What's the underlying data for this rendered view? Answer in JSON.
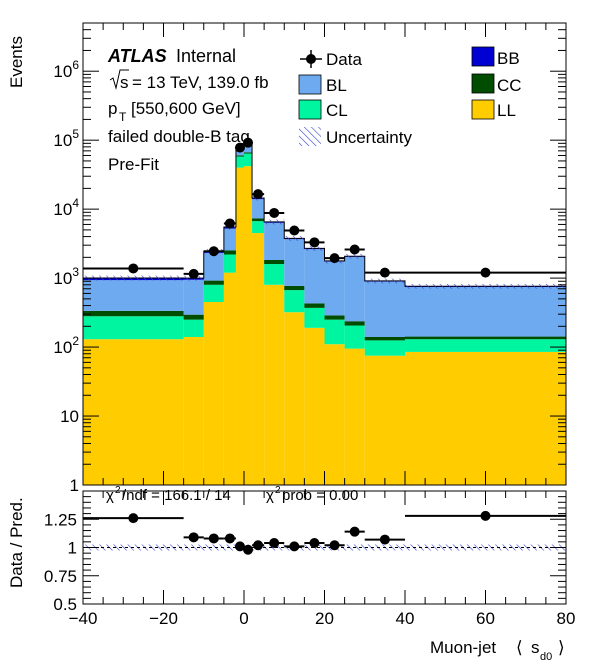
{
  "chart_data": [
    {
      "type": "bar",
      "stacked": true,
      "yscale": "log",
      "ylabel": "Events",
      "ylim": [
        1,
        5000000
      ],
      "xlim": [
        -40,
        80
      ],
      "yticks": [
        {
          "v": 1,
          "label": "1"
        },
        {
          "v": 10,
          "label": "10"
        },
        {
          "v": 100,
          "label": "10^2"
        },
        {
          "v": 1000,
          "label": "10^3"
        },
        {
          "v": 10000,
          "label": "10^4"
        },
        {
          "v": 100000,
          "label": "10^5"
        },
        {
          "v": 1000000,
          "label": "10^6"
        }
      ],
      "bin_edges": [
        -40,
        -15,
        -10,
        -5,
        -2,
        0,
        2,
        5,
        10,
        15,
        20,
        25,
        30,
        40,
        80
      ],
      "series": [
        {
          "name": "LL",
          "color": "#ffcc00",
          "values": [
            130,
            140,
            450,
            1200,
            40000,
            42000,
            4500,
            800,
            320,
            190,
            110,
            95,
            75,
            85
          ]
        },
        {
          "name": "CL",
          "color": "#00f5a0",
          "values": [
            150,
            110,
            350,
            1000,
            18000,
            22000,
            2200,
            800,
            350,
            180,
            140,
            110,
            50,
            45
          ]
        },
        {
          "name": "CC",
          "color": "#004d00",
          "values": [
            55,
            45,
            120,
            320,
            2200,
            2500,
            650,
            230,
            100,
            60,
            38,
            32,
            15,
            12
          ]
        },
        {
          "name": "BL",
          "color": "#6eaaf0",
          "values": [
            600,
            650,
            1400,
            2700,
            18000,
            23000,
            6600,
            4500,
            2900,
            2200,
            1450,
            1800,
            750,
            600
          ]
        },
        {
          "name": "BB",
          "color": "#0000d2",
          "values": [
            70,
            55,
            130,
            280,
            2000,
            2500,
            550,
            200,
            100,
            70,
            40,
            40,
            20,
            20
          ]
        }
      ],
      "data_points": {
        "name": "Data",
        "points": [
          {
            "x": -27.5,
            "xerr": 12.5,
            "y": 1380,
            "yerr": 40
          },
          {
            "x": -12.5,
            "xerr": 2.5,
            "y": 1150,
            "yerr": 35
          },
          {
            "x": -7.5,
            "xerr": 2.5,
            "y": 2450,
            "yerr": 50
          },
          {
            "x": -3.5,
            "xerr": 1.5,
            "y": 6200,
            "yerr": 80
          },
          {
            "x": -1,
            "xerr": 1,
            "y": 78000,
            "yerr": 280
          },
          {
            "x": 1,
            "xerr": 1,
            "y": 92000,
            "yerr": 300
          },
          {
            "x": 3.5,
            "xerr": 1.5,
            "y": 16500,
            "yerr": 130
          },
          {
            "x": 7.5,
            "xerr": 2.5,
            "y": 8800,
            "yerr": 95
          },
          {
            "x": 12.5,
            "xerr": 2.5,
            "y": 4900,
            "yerr": 70
          },
          {
            "x": 17.5,
            "xerr": 2.5,
            "y": 3300,
            "yerr": 55
          },
          {
            "x": 22.5,
            "xerr": 2.5,
            "y": 1950,
            "yerr": 45
          },
          {
            "x": 27.5,
            "xerr": 2.5,
            "y": 2600,
            "yerr": 50
          },
          {
            "x": 35,
            "xerr": 5,
            "y": 1200,
            "yerr": 35
          },
          {
            "x": 60,
            "xerr": 20,
            "y": 1200,
            "yerr": 35
          }
        ]
      },
      "legend": {
        "placement": "top",
        "entries": [
          {
            "label": "Data",
            "kind": "marker"
          },
          {
            "label": "BL",
            "color": "#6eaaf0"
          },
          {
            "label": "CL",
            "color": "#00f5a0"
          },
          {
            "label": "Uncertainty",
            "kind": "hatch"
          },
          {
            "label": "BB",
            "color": "#0000d2"
          },
          {
            "label": "CC",
            "color": "#004d00"
          },
          {
            "label": "LL",
            "color": "#ffcc00"
          }
        ]
      },
      "annotations": {
        "atlas": "ATLAS",
        "atlas_status": "Internal",
        "energy_text": "= 13 TeV, 139.0 fb",
        "sqrt_s": "s",
        "pt_prefix": "p",
        "pt_sub": "T",
        "pt_range": "[550,600 GeV]",
        "tag": "failed double-B tag",
        "fit": "Pre-Fit"
      }
    },
    {
      "type": "scatter",
      "ylabel": "Data / Pred.",
      "xlabel": "Muon-jet",
      "xlabel_var": "s",
      "xlabel_sub": "d0",
      "ylim": [
        0.5,
        1.5
      ],
      "xlim": [
        -40,
        80
      ],
      "yticks": [
        0.5,
        0.75,
        1,
        1.25
      ],
      "ytick_labels": [
        "0.5",
        "0.75",
        "1",
        "1.25"
      ],
      "xticks": [
        -40,
        -20,
        0,
        20,
        40,
        60,
        80
      ],
      "xtick_labels": [
        "−40",
        "−20",
        "0",
        "20",
        "40",
        "60",
        "80"
      ],
      "chi2_text": "/ndf = 166.1 / 14",
      "chi2prob_text": "prob = 0.00",
      "chi2_symbol": "χ",
      "points": [
        {
          "x": -27.5,
          "xerr": 12.5,
          "y": 1.26
        },
        {
          "x": -12.5,
          "xerr": 2.5,
          "y": 1.09
        },
        {
          "x": -7.5,
          "xerr": 2.5,
          "y": 1.08
        },
        {
          "x": -3.5,
          "xerr": 1.5,
          "y": 1.08
        },
        {
          "x": -1,
          "xerr": 1,
          "y": 1.01
        },
        {
          "x": 1,
          "xerr": 1,
          "y": 0.98
        },
        {
          "x": 3.5,
          "xerr": 1.5,
          "y": 1.02
        },
        {
          "x": 7.5,
          "xerr": 2.5,
          "y": 1.04
        },
        {
          "x": 12.5,
          "xerr": 2.5,
          "y": 1.01
        },
        {
          "x": 17.5,
          "xerr": 2.5,
          "y": 1.04
        },
        {
          "x": 22.5,
          "xerr": 2.5,
          "y": 1.02
        },
        {
          "x": 27.5,
          "xerr": 2.5,
          "y": 1.14
        },
        {
          "x": 35,
          "xerr": 5,
          "y": 1.07
        },
        {
          "x": 60,
          "xerr": 20,
          "y": 1.28
        }
      ]
    }
  ]
}
